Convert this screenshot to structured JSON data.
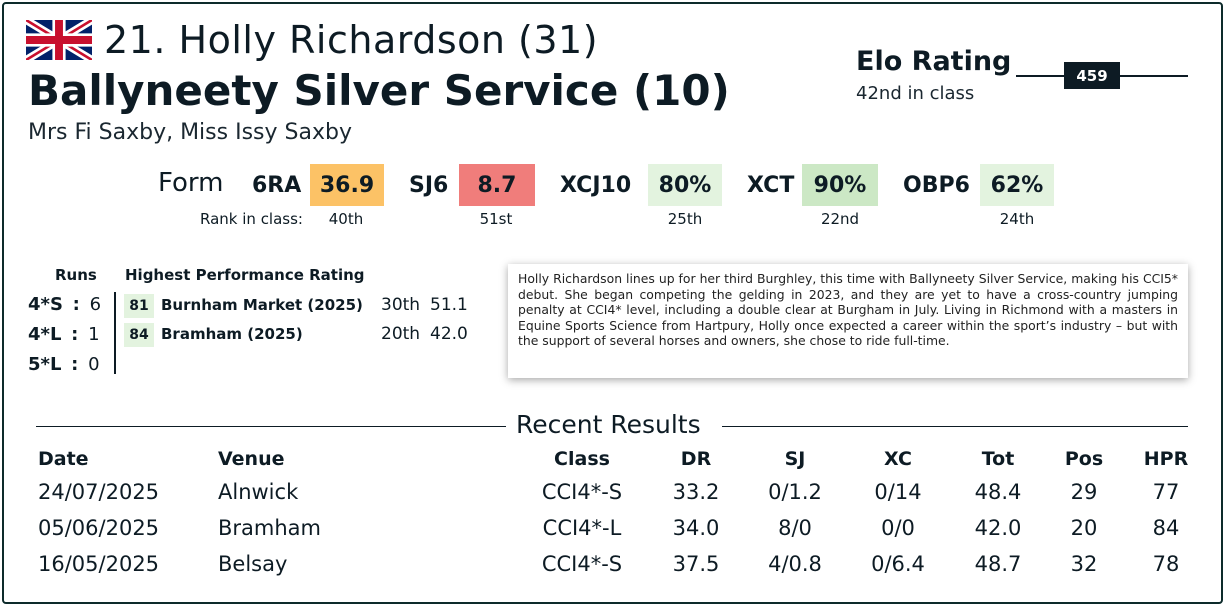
{
  "header": {
    "rider": "21. Holly Richardson (31)",
    "horse": "Ballyneety Silver Service (10)",
    "owners": "Mrs Fi Saxby, Miss Issy Saxby",
    "flag_icon": "uk-flag-icon"
  },
  "elo": {
    "title": "Elo Rating",
    "value": "459",
    "class_rank": "42nd in class"
  },
  "form": {
    "label": "Form",
    "rank_label": "Rank in class:",
    "metrics": [
      {
        "label": "6RA",
        "value": "36.9",
        "rank": "40th",
        "color": "#fcc266"
      },
      {
        "label": "SJ6",
        "value": "8.7",
        "rank": "51st",
        "color": "#f07d7b"
      },
      {
        "label": "XCJ10",
        "value": "80%",
        "rank": "25th",
        "color": "#e3f3df"
      },
      {
        "label": "XCT",
        "value": "90%",
        "rank": "22nd",
        "color": "#cce8c5"
      },
      {
        "label": "OBP6",
        "value": "62%",
        "rank": "24th",
        "color": "#e3f3df"
      }
    ]
  },
  "runs": {
    "header": "Runs",
    "rows": [
      {
        "level": "4*S",
        "sep": ":",
        "count": "6"
      },
      {
        "level": "4*L",
        "sep": ":",
        "count": "1"
      },
      {
        "level": "5*L",
        "sep": ":",
        "count": "0"
      }
    ]
  },
  "hpr": {
    "header": "Highest Performance Rating",
    "rows": [
      {
        "rating": "81",
        "event": "Burnham Market (2025)",
        "pos": "30th",
        "score": "51.1"
      },
      {
        "rating": "84",
        "event": "Bramham (2025)",
        "pos": "20th",
        "score": "42.0"
      }
    ]
  },
  "bio": "Holly Richardson lines up for her third Burghley, this time with Ballyneety Silver Service, making his CCI5* debut. She began competing the gelding in 2023, and they are yet to have a cross-country jumping penalty at CCI4* level, including a double clear at Burgham in July. Living in Richmond with a masters in Equine Sports Science from Hartpury, Holly once expected a career within the sport’s industry – but with the support of several horses and owners, she chose to ride full-time.",
  "results": {
    "title": "Recent Results",
    "columns": [
      "Date",
      "Venue",
      "Class",
      "DR",
      "SJ",
      "XC",
      "Tot",
      "Pos",
      "HPR"
    ],
    "rows": [
      [
        "24/07/2025",
        "Alnwick",
        "CCI4*-S",
        "33.2",
        "0/1.2",
        "0/14",
        "48.4",
        "29",
        "77"
      ],
      [
        "05/06/2025",
        "Bramham",
        "CCI4*-L",
        "34.0",
        "8/0",
        "0/0",
        "42.0",
        "20",
        "84"
      ],
      [
        "16/05/2025",
        "Belsay",
        "CCI4*-S",
        "37.5",
        "4/0.8",
        "0/6.4",
        "48.7",
        "32",
        "78"
      ]
    ]
  }
}
